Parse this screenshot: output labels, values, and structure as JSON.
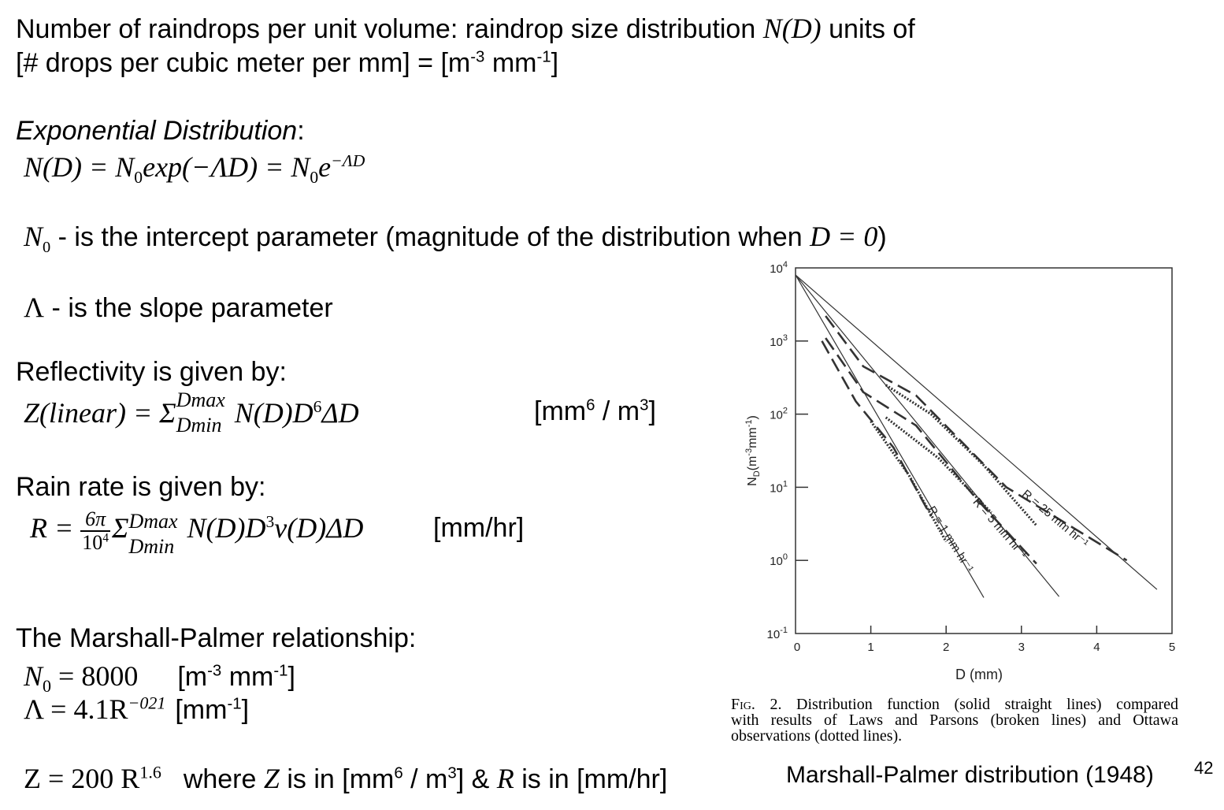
{
  "intro": {
    "line1_a": "Number of raindrops per unit volume: raindrop size distribution ",
    "line1_math": "N(D)",
    "line1_b": " units of",
    "line2_a": "[# drops per cubic meter per mm] = [m",
    "line2_sup1": "-3",
    "line2_b": " mm",
    "line2_sup2": "-1",
    "line2_c": "]"
  },
  "exponential": {
    "heading": "Exponential Distribution",
    "colon": ":",
    "formula": "N(D) = N",
    "formula_sub": "0",
    "formula_mid": "exp(−ΛD) = N",
    "formula_sub2": "0",
    "formula_e": "e",
    "formula_sup": "−ΛD"
  },
  "n0_def": {
    "sym": "N",
    "sub": "0",
    "text": " - is the intercept parameter (magnitude of the distribution when ",
    "cond": "D = 0",
    "close": ")"
  },
  "lambda_def": {
    "sym": "Λ",
    "text": " - is the slope parameter"
  },
  "reflectivity": {
    "heading": "Reflectivity is given by:",
    "lhs": "Z(linear) = Σ",
    "sum_hi": "Dmax",
    "sum_lo": "Dmin",
    "rhs": "N(D)D",
    "rhs_sup": "6",
    "rhs_end": "ΔD",
    "units_a": "[mm",
    "units_sup1": "6",
    "units_b": " / m",
    "units_sup2": "3",
    "units_c": "]"
  },
  "rainrate": {
    "heading": "Rain rate is given by:",
    "lhs": "R =",
    "frac_num": "6π",
    "frac_den": "10",
    "frac_den_sup": "4",
    "sigma": "Σ",
    "sum_hi": "Dmax",
    "sum_lo": "Dmin",
    "rhs": "N(D)D",
    "rhs_sup": "3",
    "rhs_end": "v(D)ΔD",
    "units": "[mm/hr]"
  },
  "marshall_palmer": {
    "heading": "The Marshall-Palmer relationship:",
    "n0_sym": "N",
    "n0_sub": "0",
    "n0_eq": " = 8000",
    "n0_units_a": "[m",
    "n0_units_sup1": "-3",
    "n0_units_b": " mm",
    "n0_units_sup2": "-1",
    "n0_units_c": "]",
    "lam_eq": "Λ = 4.1R",
    "lam_sup": "−021",
    "lam_units_a": "[mm",
    "lam_units_sup": "-1",
    "lam_units_c": "]"
  },
  "zr": {
    "eq": "Z = 200 R",
    "eq_sup": "1.6",
    "text_a": "where ",
    "z": "Z",
    "text_b": " is in [mm",
    "sup1": "6",
    "text_c": " / m",
    "sup2": "3",
    "text_d": "] & ",
    "r": "R",
    "text_e": " is in [mm/hr]"
  },
  "source_label": "Marshall-Palmer distribution (1948)",
  "page_number": "42",
  "figure": {
    "caption_line1": "FIG. 2. Distribution function (solid straight lines) compared",
    "caption_line2": "with results of Laws and Parsons (broken lines) and Ottawa",
    "caption_line3": "observations (dotted lines).",
    "caption_fig": "Fig.",
    "caption_rest1": " 2. Distribution function (solid straight lines) compared",
    "ylabel": "N",
    "ylabel_sub": "D",
    "ylabel_rest": "(m",
    "ylabel_sup1": "-3",
    "ylabel_mid": "mm",
    "ylabel_sup2": "-1",
    "ylabel_end": ")",
    "xlabel": "D (mm)",
    "curve_labels": [
      "R = 25 mm hr⁻¹",
      "R = 5 mm hr⁻¹",
      "R = 1 mm hr⁻¹"
    ]
  },
  "chart_data": {
    "type": "line",
    "xlabel": "D (mm)",
    "ylabel": "N_D (m^-3 mm^-1)",
    "xlim": [
      0,
      5
    ],
    "ylim": [
      0.1,
      10000
    ],
    "yscale": "log",
    "x_ticks": [
      "0",
      "1",
      "2",
      "3",
      "4",
      "5"
    ],
    "y_ticks": [
      "10^4",
      "10^3",
      "10^2",
      "10^1",
      "10^0",
      "10^-1"
    ],
    "series": [
      {
        "name": "R = 25 mm hr⁻¹",
        "style": "solid",
        "x": [
          0,
          4.8
        ],
        "y": [
          8000,
          0.4
        ]
      },
      {
        "name": "R = 5 mm hr⁻¹",
        "style": "solid",
        "x": [
          0,
          3.5
        ],
        "y": [
          8000,
          0.32
        ]
      },
      {
        "name": "R = 1 mm hr⁻¹",
        "style": "solid",
        "x": [
          0,
          2.5
        ],
        "y": [
          8000,
          0.31
        ]
      },
      {
        "name": "",
        "style": "dashed",
        "x": [
          0.4,
          0.9,
          1.6,
          2.8,
          4.4
        ],
        "y": [
          2200,
          450,
          180,
          10,
          1.0
        ]
      },
      {
        "name": "",
        "style": "dashed",
        "x": [
          0.4,
          0.9,
          1.6,
          2.4,
          3.2
        ],
        "y": [
          1100,
          200,
          70,
          7,
          0.9
        ]
      },
      {
        "name": "",
        "style": "dashed",
        "x": [
          0.35,
          0.8,
          1.3,
          1.8
        ],
        "y": [
          1000,
          150,
          35,
          4
        ]
      },
      {
        "name": "",
        "style": "dotted",
        "x": [
          1.2,
          1.8,
          2.5,
          3.2
        ],
        "y": [
          250,
          100,
          20,
          3
        ]
      },
      {
        "name": "",
        "style": "dotted",
        "x": [
          1.2,
          1.9,
          2.6
        ],
        "y": [
          90,
          25,
          4.5
        ]
      },
      {
        "name": "",
        "style": "dotted",
        "x": [
          1.0,
          1.5,
          2.0
        ],
        "y": [
          80,
          15,
          1.8
        ]
      }
    ]
  }
}
